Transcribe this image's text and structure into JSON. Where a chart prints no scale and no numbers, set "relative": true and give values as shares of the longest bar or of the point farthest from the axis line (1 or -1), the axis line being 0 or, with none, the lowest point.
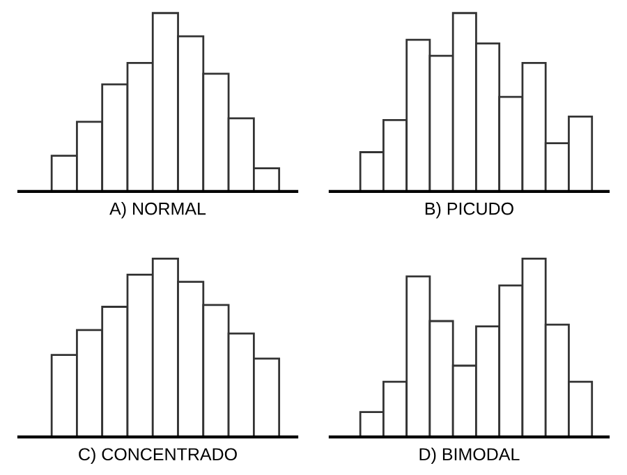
{
  "chart_data": [
    {
      "type": "bar",
      "relative": true,
      "xlabel": "A) NORMAL",
      "categories": [
        null,
        null,
        null,
        null,
        null,
        null,
        null,
        null,
        null
      ],
      "color": "#ffffff",
      "values": [
        0.2,
        0.39,
        0.6,
        0.72,
        1,
        0.87,
        0.66,
        0.41,
        0.13
      ]
    },
    {
      "type": "bar",
      "relative": true,
      "xlabel": "B) PICUDO",
      "categories": [
        null,
        null,
        null,
        null,
        null,
        null,
        null,
        null,
        null,
        null
      ],
      "color": "#ffffff",
      "values": [
        0.22,
        0.4,
        0.85,
        0.76,
        1,
        0.83,
        0.53,
        0.72,
        0.27,
        0.42
      ]
    },
    {
      "type": "bar",
      "relative": true,
      "xlabel": "C) CONCENTRADO",
      "categories": [
        null,
        null,
        null,
        null,
        null,
        null,
        null,
        null,
        null
      ],
      "color": "#ffffff",
      "values": [
        0.46,
        0.6,
        0.73,
        0.91,
        1,
        0.87,
        0.74,
        0.58,
        0.44
      ]
    },
    {
      "type": "bar",
      "relative": true,
      "xlabel": "D) BIMODAL",
      "categories": [
        null,
        null,
        null,
        null,
        null,
        null,
        null,
        null,
        null,
        null
      ],
      "color": "#ffffff",
      "values": [
        0.14,
        0.31,
        0.9,
        0.65,
        0.4,
        0.62,
        0.85,
        1,
        0.63,
        0.31
      ]
    }
  ]
}
